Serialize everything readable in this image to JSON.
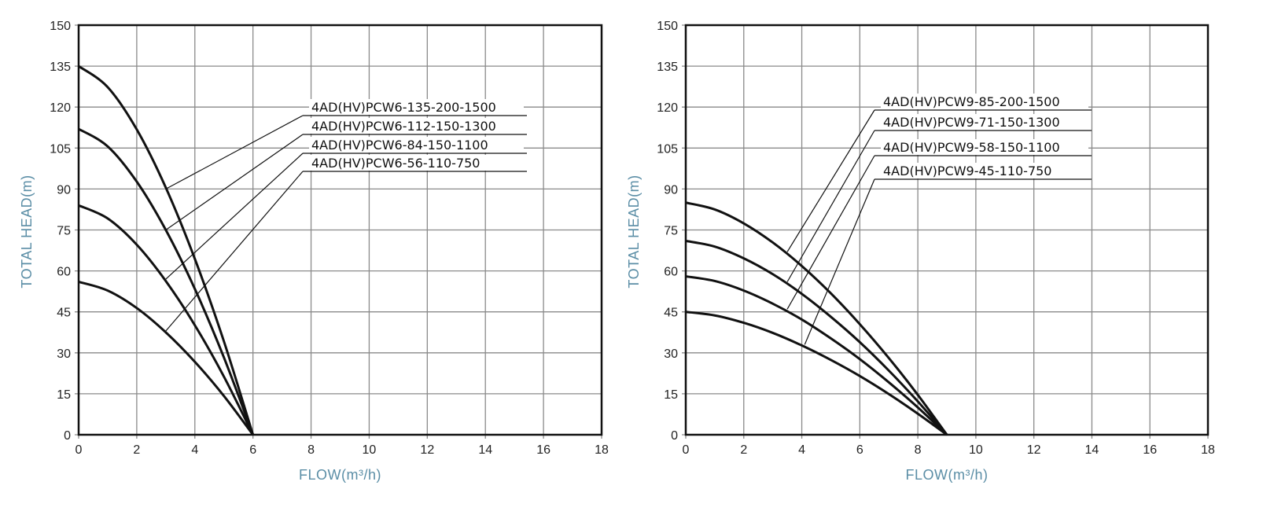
{
  "chart_data": [
    {
      "type": "line",
      "xlabel": "FLOW(m³/h)",
      "ylabel": "TOTAL HEAD(m)",
      "xlim": [
        0,
        18
      ],
      "ylim": [
        0,
        150
      ],
      "xticks": [
        0,
        2,
        4,
        6,
        8,
        10,
        12,
        14,
        16,
        18
      ],
      "yticks": [
        0,
        15,
        30,
        45,
        60,
        75,
        90,
        105,
        120,
        135,
        150
      ],
      "grid": true,
      "x": [
        0,
        1,
        2,
        3,
        4,
        5,
        6
      ],
      "series": [
        {
          "name": "4AD(HV)PCW6-135-200-1500",
          "values": [
            135,
            127.3,
            111.8,
            90.5,
            64.4,
            34.2,
            0
          ],
          "label_anchor": [
            3,
            90
          ]
        },
        {
          "name": "4AD(HV)PCW6-112-150-1300",
          "values": [
            112,
            105.6,
            92.7,
            75,
            53.4,
            28.3,
            0
          ],
          "label_anchor": [
            3,
            75
          ]
        },
        {
          "name": "4AD(HV)PCW6-84-150-1100",
          "values": [
            84,
            79.2,
            69.6,
            56.3,
            40.1,
            21.3,
            0
          ],
          "label_anchor": [
            3,
            57
          ]
        },
        {
          "name": "4AD(HV)PCW6-56-110-750",
          "values": [
            56,
            52.8,
            46.4,
            37.5,
            26.7,
            14.2,
            0
          ],
          "label_anchor": [
            3,
            38
          ]
        }
      ]
    },
    {
      "type": "line",
      "xlabel": "FLOW(m³/h)",
      "ylabel": "TOTAL HEAD(m)",
      "xlim": [
        0,
        18
      ],
      "ylim": [
        0,
        150
      ],
      "xticks": [
        0,
        2,
        4,
        6,
        8,
        10,
        12,
        14,
        16,
        18
      ],
      "yticks": [
        0,
        15,
        30,
        45,
        60,
        75,
        90,
        105,
        120,
        135,
        150
      ],
      "grid": true,
      "x": [
        0,
        1,
        2,
        3,
        4,
        5,
        6,
        7,
        8,
        9
      ],
      "series": [
        {
          "name": "4AD(HV)PCW9-85-200-1500",
          "values": [
            85,
            82.5,
            77.4,
            70.4,
            61.8,
            51.8,
            40.5,
            28.1,
            14.6,
            0
          ],
          "label_anchor": [
            3.5,
            67
          ]
        },
        {
          "name": "4AD(HV)PCW9-71-150-1300",
          "values": [
            71,
            68.9,
            64.6,
            58.8,
            51.6,
            43.2,
            33.9,
            23.5,
            12.2,
            0
          ],
          "label_anchor": [
            3.5,
            56
          ]
        },
        {
          "name": "4AD(HV)PCW9-58-150-1100",
          "values": [
            58,
            56.3,
            52.8,
            48,
            42.2,
            35.3,
            27.7,
            19.2,
            10,
            0
          ],
          "label_anchor": [
            3.5,
            46
          ]
        },
        {
          "name": "4AD(HV)PCW9-45-110-750",
          "values": [
            45,
            43.7,
            41,
            37.3,
            32.7,
            27.4,
            21.5,
            14.9,
            7.7,
            0
          ],
          "label_anchor": [
            4.1,
            33
          ]
        }
      ]
    }
  ]
}
